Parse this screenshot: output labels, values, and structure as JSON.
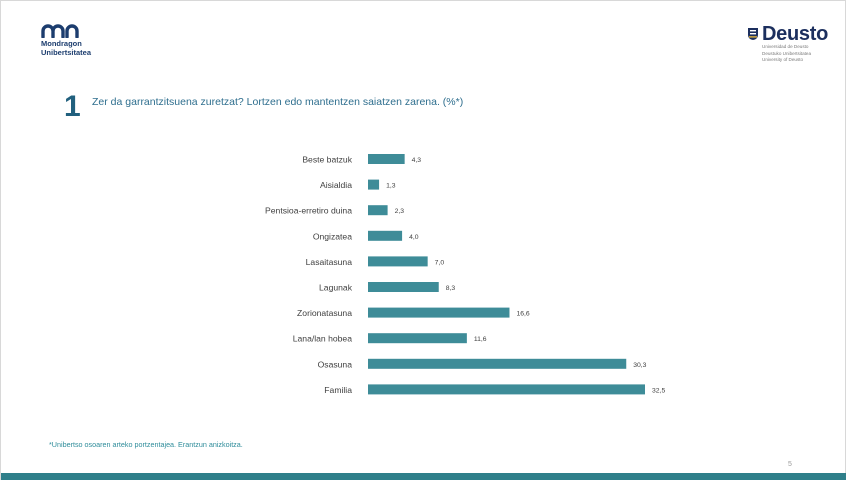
{
  "header": {
    "logo_left": {
      "line1": "Mondragon",
      "line2": "Unibertsitatea",
      "icon": "mondragon-mu-logo-icon",
      "color": "#1c3d6e"
    },
    "logo_right": {
      "name": "Deusto",
      "sub1": "Universidad de Deusto",
      "sub2": "Deustuko Unibertsitatea",
      "sub3": "University of Deusto",
      "icon": "deusto-shield-icon"
    }
  },
  "slide": {
    "section_number": "1",
    "question": "Zer da garrantzitsuena zuretzat? Lortzen edo mantentzen saiatzen zarena. (%*)",
    "footnote": "*Unibertso osoaren arteko portzentajea. Erantzun anizkoitza.",
    "page_number": "5"
  },
  "chart_data": {
    "type": "bar",
    "orientation": "horizontal",
    "categories": [
      "Beste batzuk",
      "Aisialdia",
      "Pentsioa-erretiro duina",
      "Ongizatea",
      "Lasaitasuna",
      "Lagunak",
      "Zorionatasuna",
      "Lana/lan hobea",
      "Osasuna",
      "Familia"
    ],
    "values": [
      4.3,
      1.3,
      2.3,
      4.0,
      7.0,
      8.3,
      16.6,
      11.6,
      30.3,
      32.5
    ],
    "value_labels": [
      "4,3",
      "1,3",
      "2,3",
      "4,0",
      "7,0",
      "8,3",
      "16,6",
      "11,6",
      "30,3",
      "32,5"
    ],
    "bar_color": "#3e8c98",
    "title": "",
    "xlabel": "",
    "ylabel": "",
    "xlim": [
      0,
      32.5
    ],
    "grid": false,
    "legend": "none"
  },
  "colors": {
    "accent": "#2f7f8a",
    "title_blue": "#21607e"
  }
}
